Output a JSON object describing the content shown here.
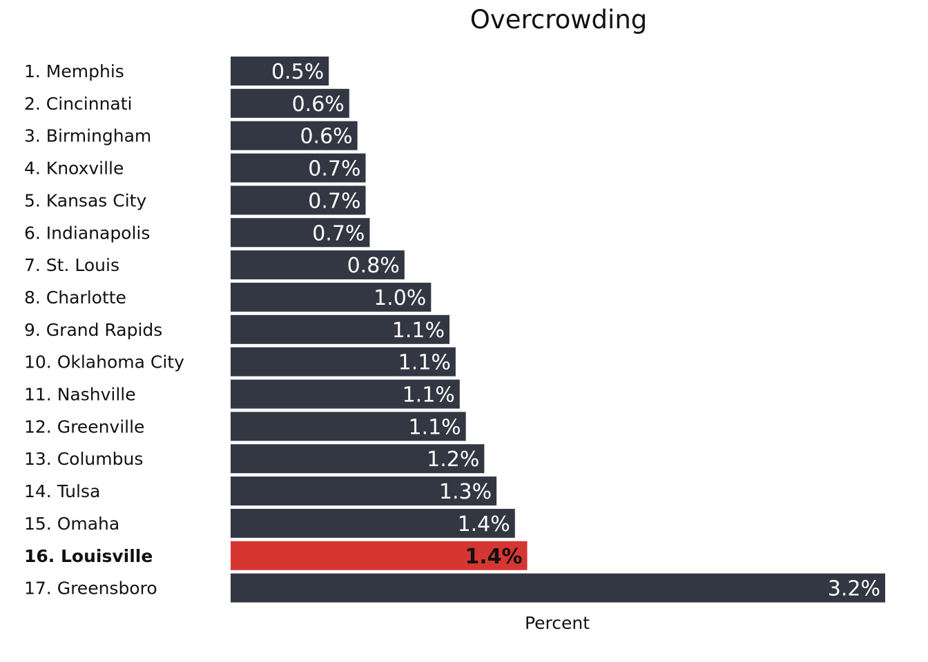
{
  "chart_data": {
    "type": "bar",
    "orientation": "horizontal",
    "title": "Overcrowding",
    "xlabel": "Percent",
    "ylabel": "",
    "categories": [
      "1. Memphis",
      "2. Cincinnati",
      "3. Birmingham",
      "4. Knoxville",
      "5. Kansas City",
      "6. Indianapolis",
      "7. St. Louis",
      "8. Charlotte",
      "9. Grand Rapids",
      "10. Oklahoma City",
      "11. Nashville",
      "12. Greenville",
      "13. Columbus",
      "14. Tulsa",
      "15. Omaha",
      "16. Louisville",
      "17. Greensboro"
    ],
    "values": [
      0.48,
      0.58,
      0.62,
      0.66,
      0.66,
      0.68,
      0.85,
      0.98,
      1.07,
      1.1,
      1.12,
      1.15,
      1.24,
      1.3,
      1.39,
      1.45,
      3.2
    ],
    "value_labels": [
      "0.5%",
      "0.6%",
      "0.6%",
      "0.7%",
      "0.7%",
      "0.7%",
      "0.8%",
      "1.0%",
      "1.1%",
      "1.1%",
      "1.1%",
      "1.1%",
      "1.2%",
      "1.3%",
      "1.4%",
      "1.4%",
      "3.2%"
    ],
    "highlight_index": 15,
    "xlim": [
      0,
      3.2
    ],
    "grid": false,
    "legend": "none",
    "colors": {
      "bar": "#333743",
      "highlight": "#d63632"
    }
  }
}
